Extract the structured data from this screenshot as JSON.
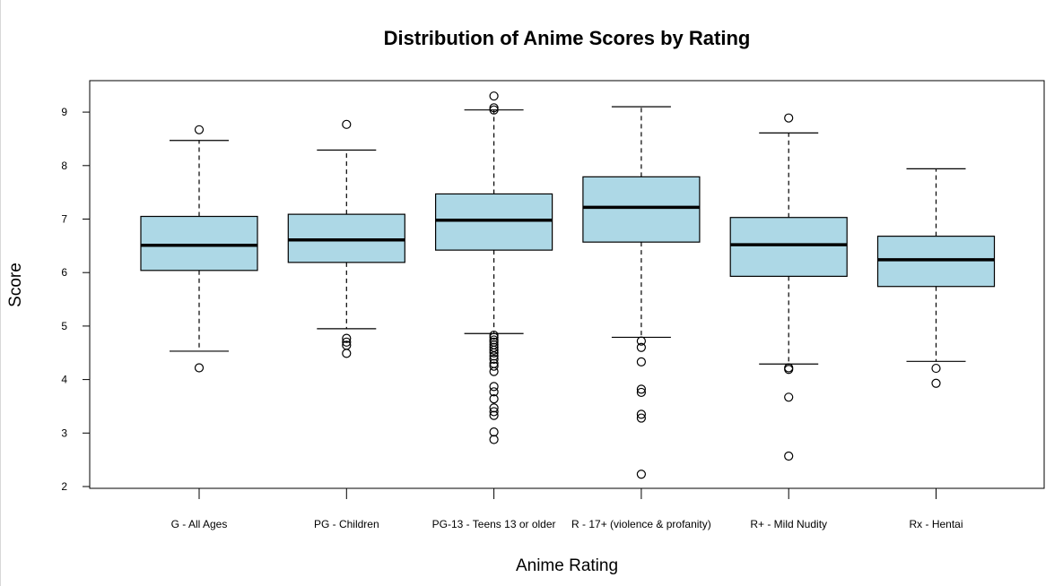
{
  "chart_data": {
    "type": "boxplot",
    "title": "Distribution of Anime Scores by Rating",
    "xlabel": "Anime Rating",
    "ylabel": "Score",
    "ylim": [
      2,
      9.5
    ],
    "yticks": [
      2,
      3,
      4,
      5,
      6,
      7,
      8,
      9
    ],
    "box_fill": "#add8e6",
    "categories": [
      "G - All Ages",
      "PG - Children",
      "PG-13 - Teens 13 or older",
      "R - 17+ (violence & profanity)",
      "R+ - Mild Nudity",
      "Rx - Hentai"
    ],
    "boxes": [
      {
        "lower_whisker": 4.53,
        "q1": 6.04,
        "median": 6.51,
        "q3": 7.05,
        "upper_whisker": 8.47,
        "outliers": [
          4.22,
          8.67
        ]
      },
      {
        "lower_whisker": 4.95,
        "q1": 6.19,
        "median": 6.61,
        "q3": 7.09,
        "upper_whisker": 8.29,
        "outliers": [
          4.49,
          4.64,
          4.7,
          4.77,
          8.77
        ]
      },
      {
        "lower_whisker": 4.86,
        "q1": 6.42,
        "median": 6.98,
        "q3": 7.47,
        "upper_whisker": 9.04,
        "outliers": [
          9.3,
          9.08,
          9.04,
          4.83,
          4.79,
          4.74,
          4.7,
          4.65,
          4.6,
          4.55,
          4.5,
          4.44,
          4.38,
          4.3,
          4.25,
          4.15,
          3.87,
          3.77,
          3.64,
          3.47,
          3.4,
          3.33,
          3.02,
          2.88
        ]
      },
      {
        "lower_whisker": 4.79,
        "q1": 6.57,
        "median": 7.22,
        "q3": 7.79,
        "upper_whisker": 9.1,
        "outliers": [
          4.72,
          4.6,
          4.33,
          3.82,
          3.76,
          3.35,
          3.28,
          2.23
        ]
      },
      {
        "lower_whisker": 4.29,
        "q1": 5.93,
        "median": 6.52,
        "q3": 7.03,
        "upper_whisker": 8.61,
        "outliers": [
          8.89,
          4.22,
          4.19,
          3.67,
          2.57
        ]
      },
      {
        "lower_whisker": 4.34,
        "q1": 5.74,
        "median": 6.24,
        "q3": 6.68,
        "upper_whisker": 7.94,
        "outliers": [
          4.21,
          3.93
        ]
      }
    ]
  }
}
